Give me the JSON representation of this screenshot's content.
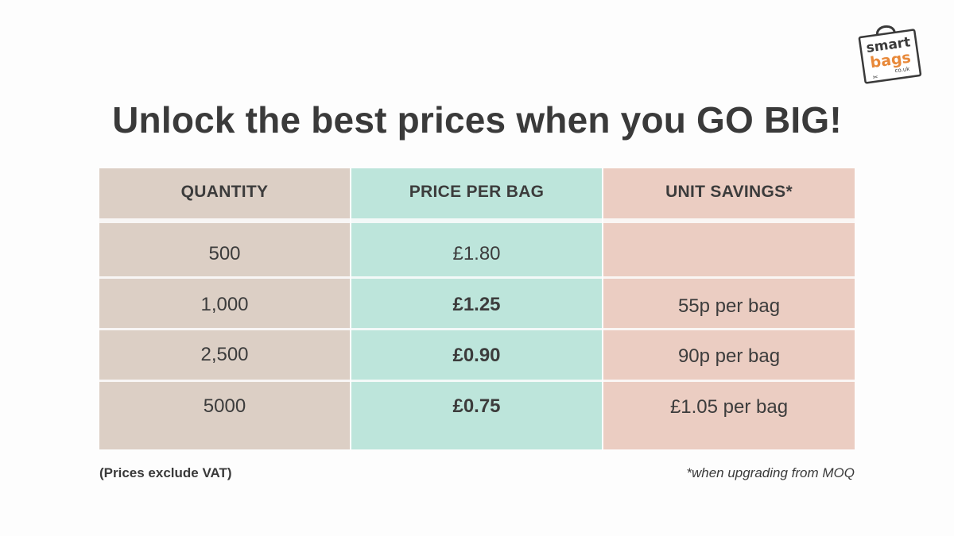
{
  "logo": {
    "line1": "smart",
    "line2": "bags",
    "line3": "co.uk",
    "accent": "#e8893a"
  },
  "title": "Unlock the best prices when you GO BIG!",
  "table": {
    "headers": [
      "QUANTITY",
      "PRICE PER BAG",
      "UNIT SAVINGS*"
    ],
    "rows": [
      {
        "quantity": "500",
        "price": "£1.80",
        "savings": ""
      },
      {
        "quantity": "1,000",
        "price": "£1.25",
        "savings": "55p per bag"
      },
      {
        "quantity": "2,500",
        "price": "£0.90",
        "savings": "90p per bag"
      },
      {
        "quantity": "5000",
        "price": "£0.75",
        "savings": "£1.05 per bag"
      }
    ],
    "colors": {
      "quantity": "#dccfc5",
      "price": "#bde5db",
      "savings": "#ebcdc2"
    }
  },
  "notes": {
    "left": "(Prices exclude VAT)",
    "right": "*when upgrading from MOQ"
  }
}
